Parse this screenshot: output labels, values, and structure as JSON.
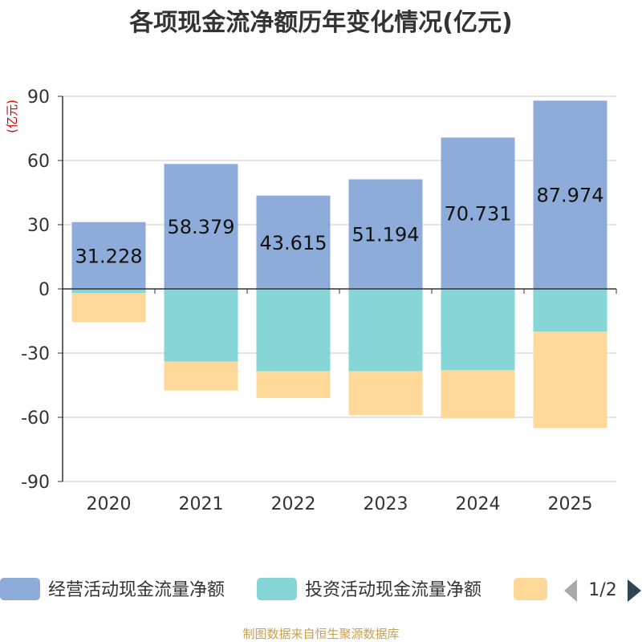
{
  "chart_data": {
    "type": "bar",
    "stacked": true,
    "title": "各项现金流净额历年变化情况(亿元)",
    "ylabel": "(亿元)",
    "xlabel": "",
    "categories": [
      "2020",
      "2021",
      "2022",
      "2023",
      "2024",
      "2025"
    ],
    "ylim": [
      -90,
      90
    ],
    "yticks": [
      90,
      60,
      30,
      0,
      -30,
      -60,
      -90
    ],
    "grid": true,
    "series": [
      {
        "name": "经营活动现金流量净额",
        "color": "#8eacd9",
        "values": [
          31.228,
          58.379,
          43.615,
          51.194,
          70.731,
          87.974
        ],
        "labels": [
          "31.228",
          "58.379",
          "43.615",
          "51.194",
          "70.731",
          "87.974"
        ]
      },
      {
        "name": "投资活动现金流量净额",
        "color": "#86d6d7",
        "values": [
          -2,
          -34,
          -38.5,
          -38.5,
          -38,
          -20
        ]
      },
      {
        "name": "",
        "color": "#fed898",
        "values": [
          -13.5,
          -13.5,
          -12.5,
          -20.5,
          -22.5,
          -45
        ]
      }
    ],
    "legend": {
      "position": "bottom",
      "page": "1/2"
    },
    "source": "制图数据来自恒生聚源数据库"
  },
  "colors": {
    "axis": "#333333",
    "grid": "#c8c8c8",
    "ylabel": "#cc0000",
    "source": "#c8a050",
    "nav_active": "#2f4554",
    "nav_inactive": "#aaaaaa"
  }
}
